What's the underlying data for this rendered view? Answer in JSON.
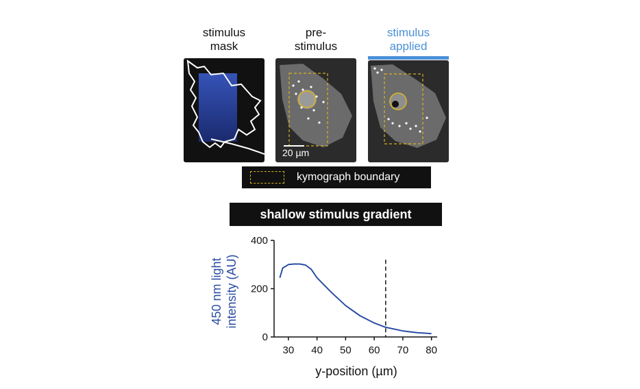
{
  "panels": {
    "mask_label": "stimulus\nmask",
    "pre_label": "pre-\nstimulus",
    "applied_label": "stimulus\napplied",
    "applied_color": "#4a90d9",
    "scale_bar_label": "20 µm"
  },
  "legend": {
    "label": "kymograph boundary",
    "swatch_color": "#d9b21c"
  },
  "chart_title": "shallow stimulus gradient",
  "chart_data": {
    "type": "line",
    "xlabel": "y-position (µm)",
    "ylabel": "450 nm light intensity (AU)",
    "xlim": [
      25,
      82
    ],
    "ylim": [
      0,
      400
    ],
    "xticks": [
      30,
      40,
      50,
      60,
      70,
      80
    ],
    "yticks": [
      0,
      200,
      400
    ],
    "series": [
      {
        "color": "#2a4da3",
        "x": [
          27,
          28,
          30,
          32,
          34,
          36,
          38,
          40,
          45,
          50,
          55,
          60,
          64,
          70,
          75,
          80
        ],
        "y": [
          245,
          285,
          300,
          302,
          302,
          298,
          280,
          245,
          185,
          130,
          88,
          58,
          40,
          25,
          18,
          14
        ]
      }
    ],
    "dashed_vline_x": 64
  }
}
